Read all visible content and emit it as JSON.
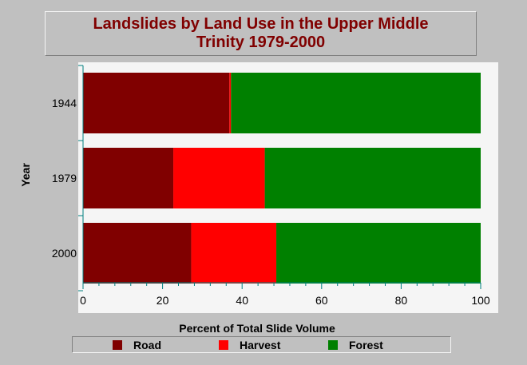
{
  "chart_data": {
    "type": "bar",
    "orientation": "horizontal",
    "stacked": true,
    "title": "Landslides by Land Use in the Upper Middle Trinity 1979-2000",
    "xlabel": "Percent of Total Slide Volume",
    "ylabel": "Year",
    "xlim": [
      0,
      100
    ],
    "xticks": [
      "0",
      "20",
      "40",
      "60",
      "80",
      "100"
    ],
    "categories": [
      "1944",
      "1979",
      "2000"
    ],
    "series": [
      {
        "name": "Road",
        "color": "#800000",
        "values": [
          36.8,
          22.7,
          27.2
        ]
      },
      {
        "name": "Harvest",
        "color": "#ff0000",
        "values": [
          0.4,
          23.0,
          21.4
        ]
      },
      {
        "name": "Forest",
        "color": "#008000",
        "values": [
          62.8,
          54.3,
          51.4
        ]
      }
    ],
    "legend_position": "bottom",
    "grid": false
  },
  "colors": {
    "background": "#c0c0c0",
    "plot_background": "#f5f5f5",
    "axis": "#008080",
    "title": "#800000"
  }
}
